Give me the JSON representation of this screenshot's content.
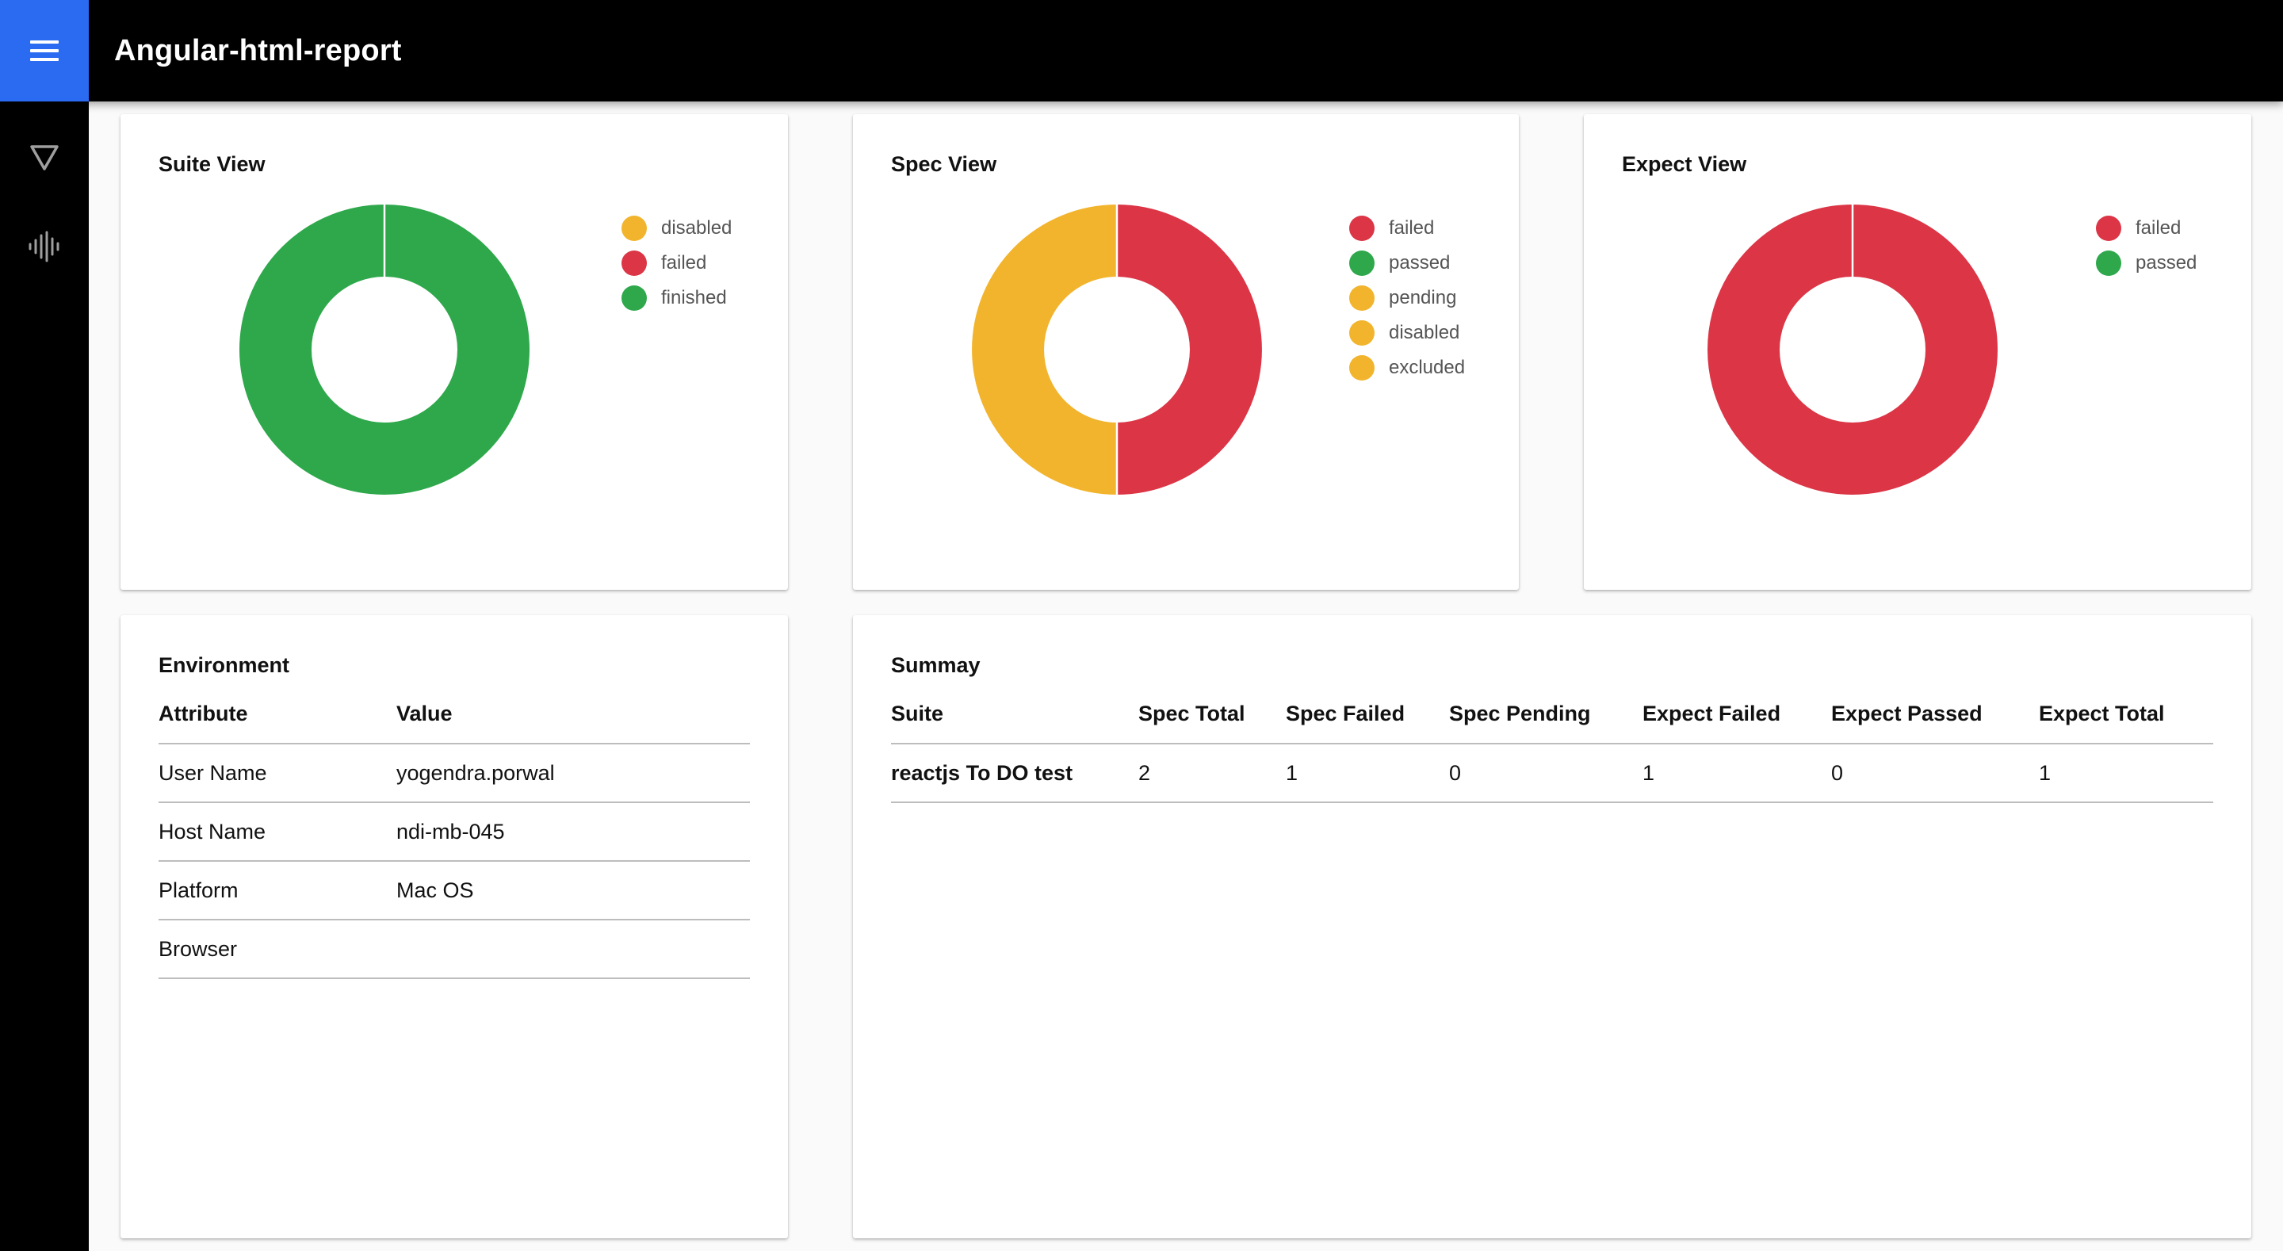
{
  "header": {
    "menu_icon": "hamburger-menu-icon",
    "title": "Angular-html-report"
  },
  "sidebar": {
    "items": [
      {
        "icon": "filter-triangle-icon"
      },
      {
        "icon": "waveform-icon"
      }
    ]
  },
  "charts": {
    "suite": {
      "title": "Suite View",
      "legend": [
        "disabled",
        "failed",
        "finished"
      ]
    },
    "spec": {
      "title": "Spec View",
      "legend": [
        "failed",
        "passed",
        "pending",
        "disabled",
        "excluded"
      ]
    },
    "expect": {
      "title": "Expect View",
      "legend": [
        "failed",
        "passed"
      ]
    }
  },
  "colors": {
    "green": "#2ea84b",
    "red": "#db3546",
    "yellow": "#f2b42c",
    "accent": "#2a6bf2"
  },
  "chart_data": [
    {
      "type": "pie",
      "title": "Suite View",
      "categories": [
        "disabled",
        "failed",
        "finished"
      ],
      "values": [
        0,
        0,
        1
      ],
      "colors": [
        "#f2b42c",
        "#db3546",
        "#2ea84b"
      ],
      "legend": "right"
    },
    {
      "type": "pie",
      "title": "Spec View",
      "categories": [
        "failed",
        "passed",
        "pending",
        "disabled",
        "excluded"
      ],
      "values": [
        1,
        0,
        0,
        1,
        0
      ],
      "colors": [
        "#db3546",
        "#2ea84b",
        "#f2b42c",
        "#f2b42c",
        "#f2b42c"
      ],
      "legend": "right"
    },
    {
      "type": "pie",
      "title": "Expect View",
      "categories": [
        "failed",
        "passed"
      ],
      "values": [
        1,
        0
      ],
      "colors": [
        "#db3546",
        "#2ea84b"
      ],
      "legend": "right"
    }
  ],
  "environment": {
    "title": "Environment",
    "columns": [
      "Attribute",
      "Value"
    ],
    "rows": [
      {
        "attribute": "User Name",
        "value": "yogendra.porwal"
      },
      {
        "attribute": "Host Name",
        "value": "ndi-mb-045"
      },
      {
        "attribute": "Platform",
        "value": "Mac OS"
      },
      {
        "attribute": "Browser",
        "value": ""
      }
    ]
  },
  "summary": {
    "title": "Summay",
    "columns": [
      "Suite",
      "Spec Total",
      "Spec Failed",
      "Spec Pending",
      "Expect Failed",
      "Expect Passed",
      "Expect Total"
    ],
    "rows": [
      [
        "reactjs To DO test",
        "2",
        "1",
        "0",
        "1",
        "0",
        "1"
      ]
    ]
  }
}
